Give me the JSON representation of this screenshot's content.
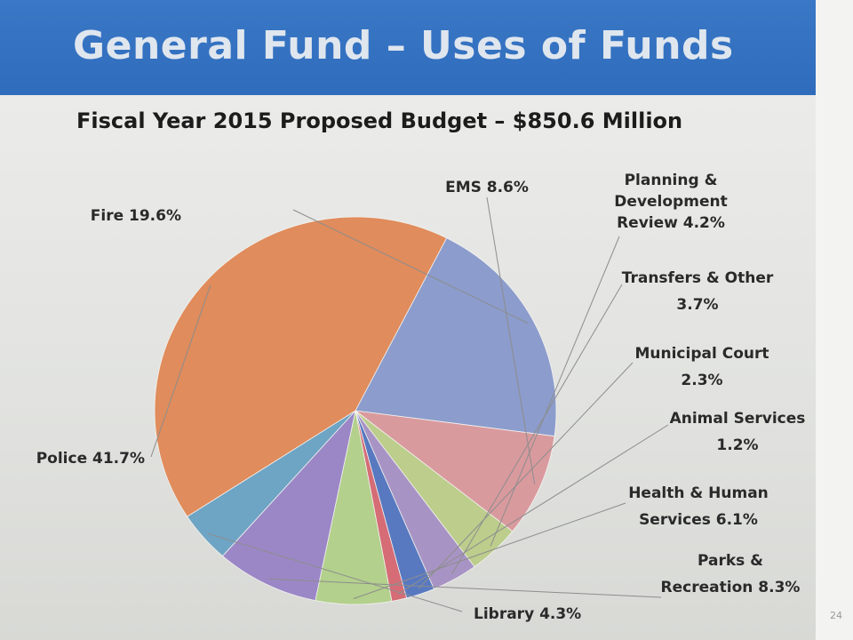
{
  "header": {
    "title": "General Fund – Uses of Funds",
    "page_number": "24"
  },
  "chart_data": {
    "type": "pie",
    "title": "Fiscal Year 2015 Proposed Budget – $850.6 Million",
    "slices": [
      {
        "name": "Fire",
        "value": 19.6,
        "color": "#8c9ccc",
        "label_lines": [
          "Fire 19.6%"
        ]
      },
      {
        "name": "EMS",
        "value": 8.6,
        "color": "#d99a9e",
        "label_lines": [
          "EMS 8.6%"
        ]
      },
      {
        "name": "Planning & Development Review",
        "value": 4.2,
        "color": "#bccd8c",
        "label_lines": [
          "Planning &",
          "Development",
          "Review 4.2%"
        ]
      },
      {
        "name": "Transfers & Other",
        "value": 3.7,
        "color": "#a894c4",
        "label_lines": [
          "Transfers & Other",
          "3.7%"
        ]
      },
      {
        "name": "Municipal Court",
        "value": 2.3,
        "color": "#5879c0",
        "label_lines": [
          "Municipal Court",
          "2.3%"
        ]
      },
      {
        "name": "Animal Services",
        "value": 1.2,
        "color": "#d56c76",
        "label_lines": [
          "Animal Services",
          "1.2%"
        ]
      },
      {
        "name": "Health & Human Services",
        "value": 6.1,
        "color": "#b3d08c",
        "label_lines": [
          "Health & Human",
          "Services 6.1%"
        ]
      },
      {
        "name": "Parks & Recreation",
        "value": 8.3,
        "color": "#9b87c6",
        "label_lines": [
          "Parks &",
          "Recreation 8.3%"
        ]
      },
      {
        "name": "Library",
        "value": 4.3,
        "color": "#6ea4c4",
        "label_lines": [
          "Library 4.3%"
        ]
      },
      {
        "name": "Police",
        "value": 41.7,
        "color": "#e08c5c",
        "label_lines": [
          "Police 41.7%"
        ]
      }
    ]
  }
}
